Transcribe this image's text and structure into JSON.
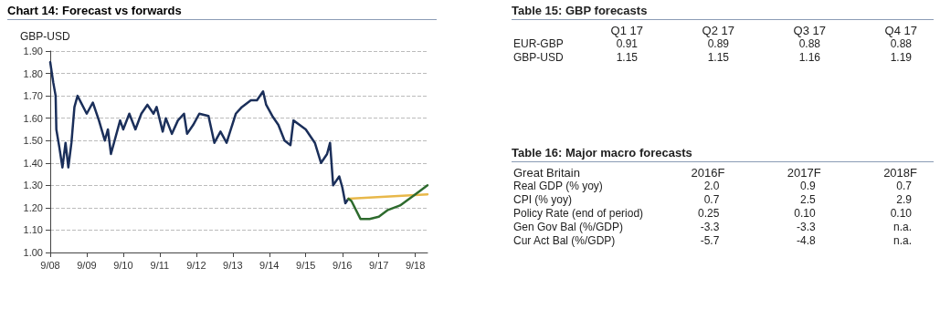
{
  "chart_data": [
    {
      "type": "line",
      "title": "Chart 14: Forecast vs forwards",
      "ylabel": "GBP-USD",
      "series": [
        {
          "color": "#1b2f5a",
          "x": [
            "2008-09",
            "2008-10",
            "2008-10-25",
            "2008-11",
            "2008-12",
            "2009-01",
            "2009-02",
            "2009-03",
            "2009-04",
            "2009-05",
            "2009-06",
            "2009-09",
            "2009-11",
            "2010-01",
            "2010-03",
            "2010-04",
            "2010-05",
            "2010-08",
            "2010-09",
            "2010-11",
            "2011-01",
            "2011-03",
            "2011-05",
            "2011-07",
            "2011-08",
            "2011-10",
            "2011-11",
            "2012-01",
            "2012-03",
            "2012-05",
            "2012-06",
            "2012-08",
            "2012-10",
            "2013-01",
            "2013-03",
            "2013-05",
            "2013-07",
            "2013-10",
            "2013-12",
            "2014-03",
            "2014-05",
            "2014-07",
            "2014-08",
            "2014-10",
            "2014-12",
            "2015-02",
            "2015-04",
            "2015-05",
            "2015-07",
            "2015-09",
            "2015-12",
            "2016-02",
            "2016-04",
            "2016-05",
            "2016-06",
            "2016-08",
            "2016-09",
            "2016-10",
            "2016-11"
          ],
          "values": [
            1.85,
            1.76,
            1.7,
            1.55,
            1.47,
            1.38,
            1.49,
            1.38,
            1.49,
            1.65,
            1.7,
            1.62,
            1.67,
            1.59,
            1.5,
            1.55,
            1.44,
            1.59,
            1.55,
            1.62,
            1.55,
            1.62,
            1.66,
            1.62,
            1.65,
            1.54,
            1.6,
            1.53,
            1.59,
            1.62,
            1.53,
            1.57,
            1.62,
            1.61,
            1.49,
            1.54,
            1.49,
            1.62,
            1.65,
            1.68,
            1.68,
            1.72,
            1.66,
            1.61,
            1.57,
            1.5,
            1.48,
            1.59,
            1.57,
            1.55,
            1.49,
            1.4,
            1.44,
            1.49,
            1.3,
            1.34,
            1.29,
            1.22,
            1.24
          ]
        },
        {
          "color": "#e8b84a",
          "x": [
            "2016-11",
            "2019-01"
          ],
          "values": [
            1.24,
            1.26
          ]
        },
        {
          "color": "#2e6b2e",
          "x": [
            "2016-11",
            "2016-12",
            "2017-03",
            "2017-06",
            "2017-09",
            "2017-12",
            "2018-04",
            "2018-09",
            "2019-01"
          ],
          "values": [
            1.24,
            1.23,
            1.15,
            1.15,
            1.16,
            1.19,
            1.21,
            1.26,
            1.3
          ]
        }
      ],
      "xlim": [
        "2008-09",
        "2019-01"
      ],
      "xticks": [
        {
          "value": "2008-09",
          "label": "9/08"
        },
        {
          "value": "2009-09",
          "label": "9/09"
        },
        {
          "value": "2010-09",
          "label": "9/10"
        },
        {
          "value": "2011-09",
          "label": "9/11"
        },
        {
          "value": "2012-09",
          "label": "9/12"
        },
        {
          "value": "2013-09",
          "label": "9/13"
        },
        {
          "value": "2014-09",
          "label": "9/14"
        },
        {
          "value": "2015-09",
          "label": "9/15"
        },
        {
          "value": "2016-09",
          "label": "9/16"
        },
        {
          "value": "2017-09",
          "label": "9/17"
        },
        {
          "value": "2018-09",
          "label": "9/18"
        }
      ],
      "ylim": [
        1.0,
        1.9
      ],
      "yticks": [
        {
          "value": 1.0,
          "label": "1.00"
        },
        {
          "value": 1.1,
          "label": "1.10"
        },
        {
          "value": 1.2,
          "label": "1.20"
        },
        {
          "value": 1.3,
          "label": "1.30"
        },
        {
          "value": 1.4,
          "label": "1.40"
        },
        {
          "value": 1.5,
          "label": "1.50"
        },
        {
          "value": 1.6,
          "label": "1.60"
        },
        {
          "value": 1.7,
          "label": "1.70"
        },
        {
          "value": 1.8,
          "label": "1.80"
        },
        {
          "value": 1.9,
          "label": "1.90"
        }
      ],
      "grid": "y",
      "marker": "none",
      "line_style": "solid"
    },
    {
      "type": "other",
      "title": "Table 15: GBP forecasts",
      "categories": [
        "Q1 17",
        "Q2 17",
        "Q3 17",
        "Q4 17"
      ],
      "y_categories": [
        "EUR-GBP",
        "GBP-USD"
      ],
      "cell_labels": [
        [
          "0.91",
          "0.89",
          "0.88",
          "0.88"
        ],
        [
          "1.15",
          "1.15",
          "1.16",
          "1.19"
        ]
      ]
    },
    {
      "type": "other",
      "title": "Table 16: Major macro forecasts",
      "subtitle": "Great Britain",
      "categories": [
        "2016F",
        "2017F",
        "2018F"
      ],
      "y_categories": [
        "Real GDP (% yoy)",
        "CPI (% yoy)",
        "Policy Rate (end of period)",
        "Gen Gov Bal (%/GDP)",
        "Cur Act Bal (%/GDP)"
      ],
      "cell_labels": [
        [
          "2.0",
          "0.9",
          "0.7"
        ],
        [
          "0.7",
          "2.5",
          "2.9"
        ],
        [
          "0.25",
          "0.10",
          "0.10"
        ],
        [
          "-3.3",
          "-3.3",
          "n.a."
        ],
        [
          "-5.7",
          "-4.8",
          "n.a."
        ]
      ]
    }
  ]
}
